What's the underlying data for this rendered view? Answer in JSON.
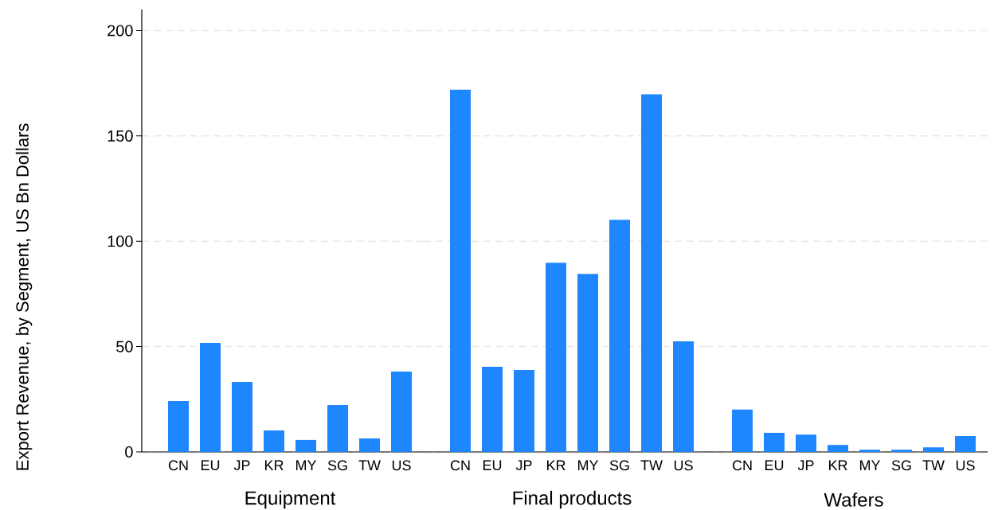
{
  "chart_data": [
    {
      "type": "bar",
      "xlabel": "Equipment",
      "ylabel": "Export Revenue, by Segment, US Bn Dollars",
      "categories": [
        "CN",
        "EU",
        "JP",
        "KR",
        "MY",
        "SG",
        "TW",
        "US"
      ],
      "values": [
        24.2,
        51.7,
        33.2,
        10.2,
        5.7,
        22.3,
        6.4,
        38.1
      ],
      "color": "#1e86ff",
      "ylim": [
        0,
        210
      ],
      "yticks": [
        0,
        50,
        100,
        150,
        200
      ],
      "grid": "y"
    },
    {
      "type": "bar",
      "xlabel": "Final products",
      "categories": [
        "CN",
        "EU",
        "JP",
        "KR",
        "MY",
        "SG",
        "TW",
        "US"
      ],
      "values": [
        172,
        40.4,
        38.9,
        89.8,
        84.5,
        110.2,
        169.8,
        52.5
      ],
      "color": "#1e86ff",
      "ylim": [
        0,
        200
      ],
      "yticks": [
        0,
        50,
        100,
        150,
        200
      ],
      "grid": "y",
      "tick_labels": "x"
    },
    {
      "type": "bar",
      "xlabel": "Wafers",
      "categories": [
        "CN",
        "EU",
        "JP",
        "KR",
        "MY",
        "SG",
        "TW",
        "US"
      ],
      "values": [
        20.1,
        9.1,
        8.2,
        3.3,
        1.0,
        1.0,
        2.2,
        7.6
      ],
      "color": "#1e86ff",
      "ylim": [
        0,
        200
      ],
      "yticks": [
        0,
        50,
        100,
        150,
        200
      ],
      "grid": "y",
      "tick_labels": "x"
    }
  ]
}
